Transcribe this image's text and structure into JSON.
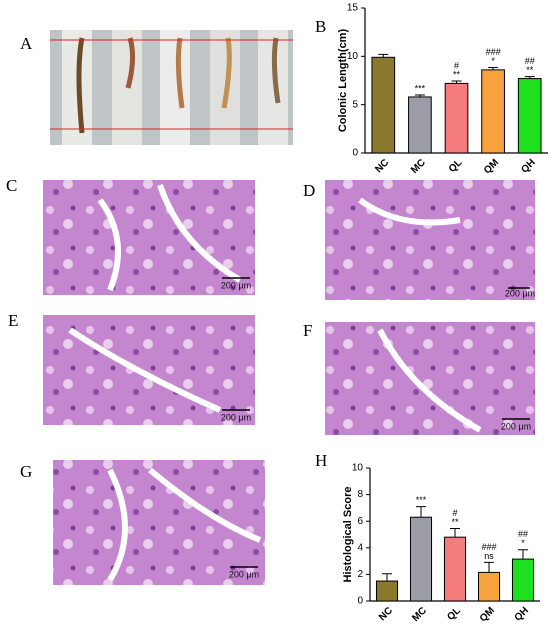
{
  "panel_labels": [
    "A",
    "B",
    "C",
    "D",
    "E",
    "F",
    "G",
    "H"
  ],
  "scale_bar_labels": [
    "200 μm",
    "200 μm",
    "200 μm",
    "200 μm",
    "200 μm"
  ],
  "chart_data": [
    {
      "type": "bar",
      "y_label": "Colonic Length(cm)",
      "categories": [
        "NC",
        "MC",
        "QL",
        "QM",
        "QH"
      ],
      "values": [
        9.9,
        5.8,
        7.2,
        8.6,
        7.7
      ],
      "errors": [
        0.3,
        0.2,
        0.25,
        0.25,
        0.2
      ],
      "colors": [
        "#8b7a2e",
        "#9c9ca6",
        "#f47c7c",
        "#f8a23e",
        "#1ee01e"
      ],
      "annotations": [
        [],
        [
          "***"
        ],
        [
          "#",
          "**"
        ],
        [
          "###",
          "*"
        ],
        [
          "##",
          "**"
        ]
      ],
      "ylim": [
        0,
        15
      ],
      "yticks": [
        0,
        5,
        10,
        15
      ]
    },
    {
      "type": "bar",
      "y_label": "Histological Score",
      "categories": [
        "NC",
        "MC",
        "QL",
        "QM",
        "QH"
      ],
      "values": [
        1.5,
        6.3,
        4.8,
        2.15,
        3.15
      ],
      "errors": [
        0.55,
        0.8,
        0.65,
        0.75,
        0.7
      ],
      "colors": [
        "#8b7a2e",
        "#9c9ca6",
        "#f47c7c",
        "#f8a23e",
        "#1ee01e"
      ],
      "annotations": [
        [],
        [
          "***"
        ],
        [
          "#",
          "**"
        ],
        [
          "###",
          "ns"
        ],
        [
          "##",
          "*"
        ]
      ],
      "ylim": [
        0,
        10
      ],
      "yticks": [
        0,
        2,
        4,
        6,
        8,
        10
      ]
    }
  ]
}
